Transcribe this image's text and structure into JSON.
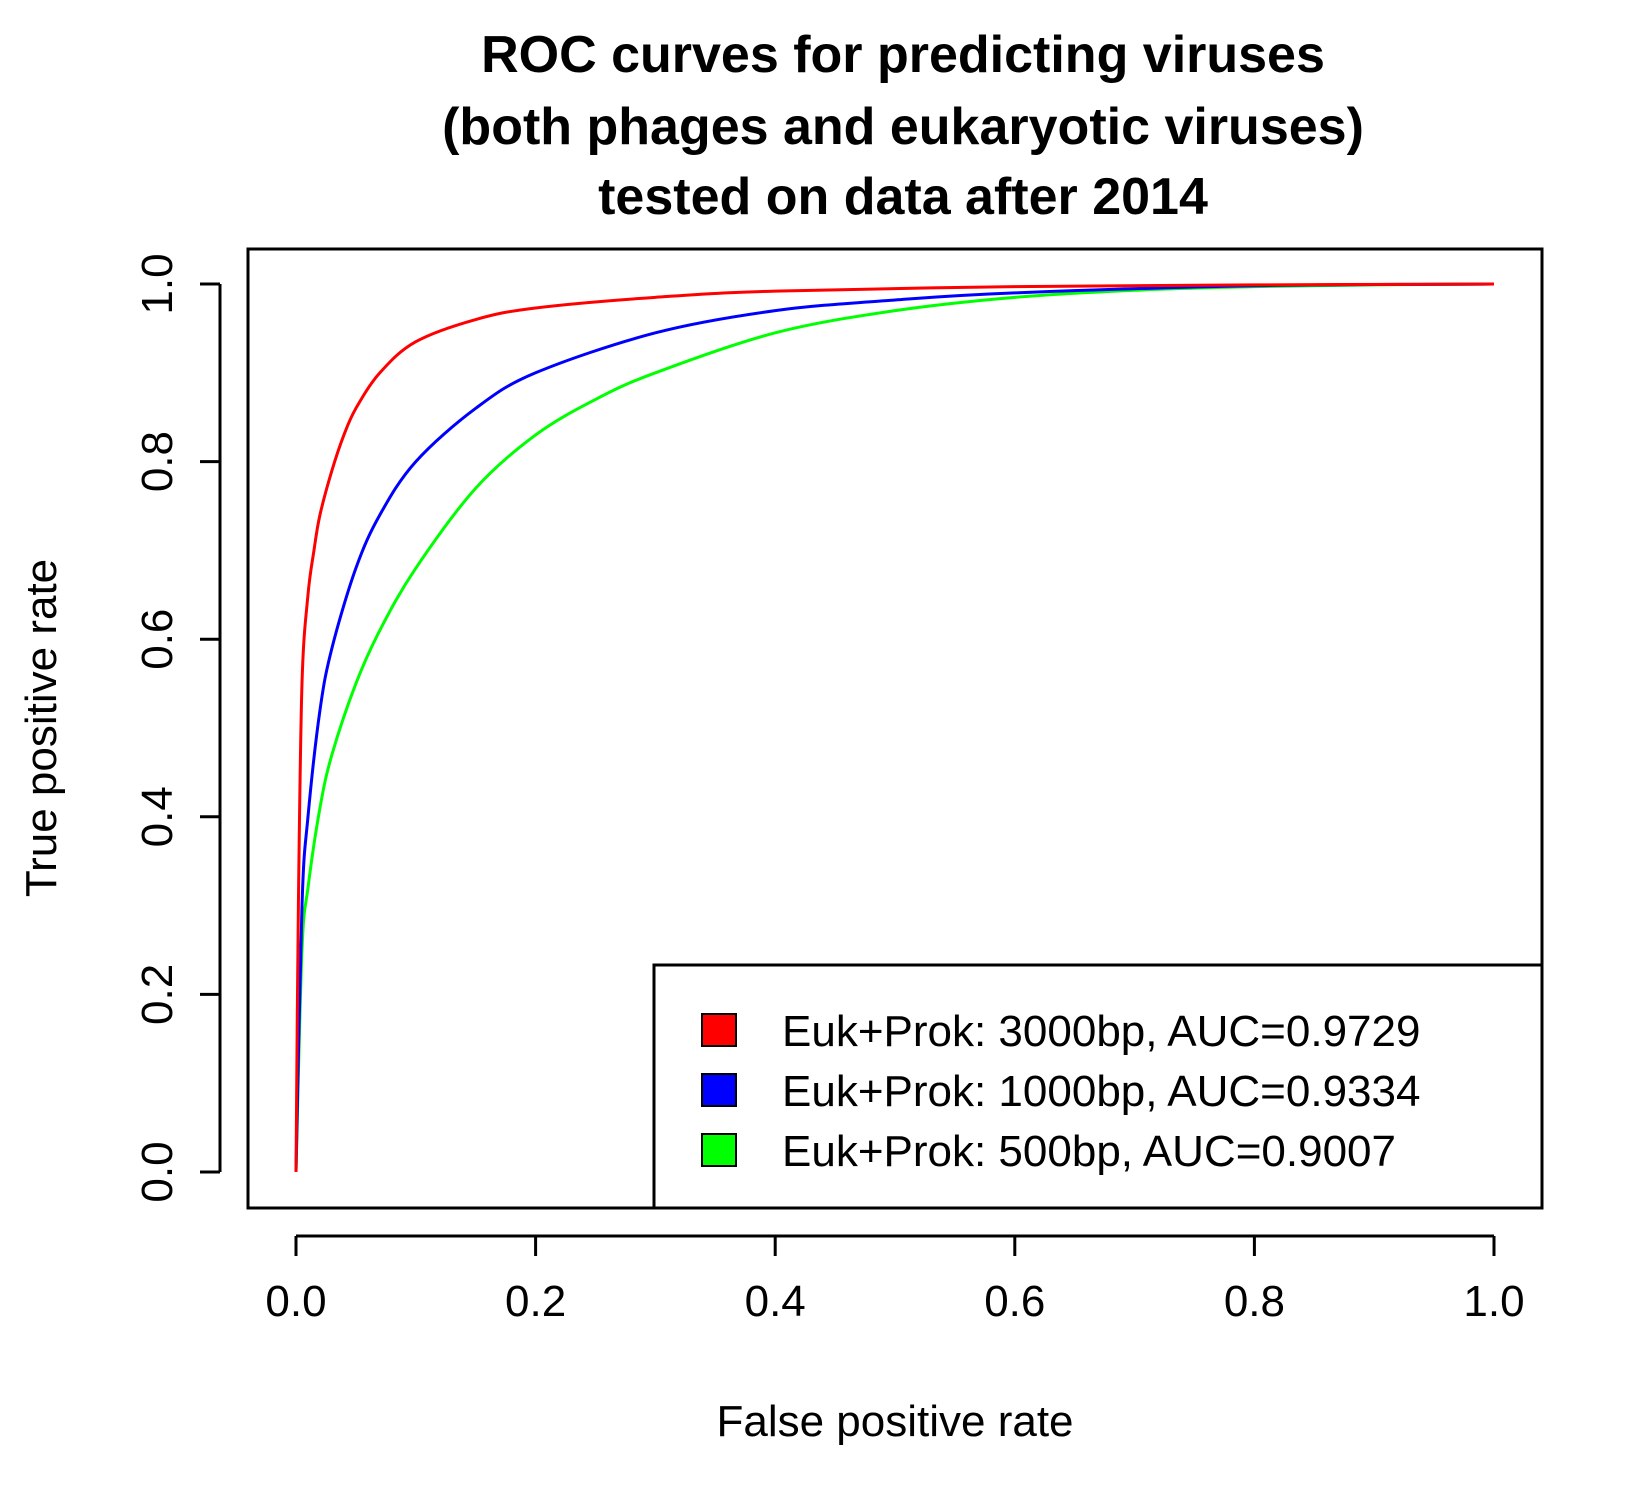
{
  "chart_data": {
    "type": "line",
    "title": [
      "ROC curves for predicting viruses",
      "(both phages and eukaryotic viruses)",
      "tested on data after 2014"
    ],
    "xlabel": "False positive rate",
    "ylabel": "True positive rate",
    "xlim": [
      0,
      1
    ],
    "ylim": [
      0,
      1
    ],
    "xticks": [
      "0.0",
      "0.2",
      "0.4",
      "0.6",
      "0.8",
      "1.0"
    ],
    "yticks": [
      "0.0",
      "0.2",
      "0.4",
      "0.6",
      "0.8",
      "1.0"
    ],
    "grid": false,
    "legend_position": "bottom-right",
    "series": [
      {
        "name": "Euk+Prok: 3000bp, AUC=0.9729",
        "color": "#ff0000",
        "x": [
          0,
          0.002,
          0.005,
          0.01,
          0.015,
          0.02,
          0.03,
          0.04,
          0.05,
          0.07,
          0.1,
          0.15,
          0.2,
          0.3,
          0.4,
          0.6,
          0.8,
          1.0
        ],
        "y": [
          0,
          0.3,
          0.55,
          0.65,
          0.7,
          0.74,
          0.79,
          0.83,
          0.86,
          0.9,
          0.935,
          0.96,
          0.973,
          0.985,
          0.992,
          0.997,
          0.999,
          1.0
        ]
      },
      {
        "name": "Euk+Prok: 1000bp, AUC=0.9334",
        "color": "#0000ff",
        "x": [
          0,
          0.005,
          0.01,
          0.02,
          0.03,
          0.05,
          0.07,
          0.1,
          0.15,
          0.2,
          0.3,
          0.4,
          0.5,
          0.6,
          0.8,
          1.0
        ],
        "y": [
          0,
          0.3,
          0.4,
          0.52,
          0.59,
          0.68,
          0.74,
          0.8,
          0.86,
          0.9,
          0.945,
          0.97,
          0.982,
          0.99,
          0.998,
          1.0
        ]
      },
      {
        "name": "Euk+Prok: 500bp, AUC=0.9007",
        "color": "#00ff00",
        "x": [
          0,
          0.005,
          0.01,
          0.02,
          0.03,
          0.05,
          0.07,
          0.1,
          0.15,
          0.2,
          0.25,
          0.3,
          0.4,
          0.5,
          0.6,
          0.7,
          0.8,
          0.9,
          1.0
        ],
        "y": [
          0,
          0.25,
          0.32,
          0.41,
          0.47,
          0.55,
          0.61,
          0.68,
          0.77,
          0.83,
          0.87,
          0.9,
          0.945,
          0.97,
          0.985,
          0.993,
          0.997,
          0.999,
          1.0
        ]
      }
    ]
  }
}
